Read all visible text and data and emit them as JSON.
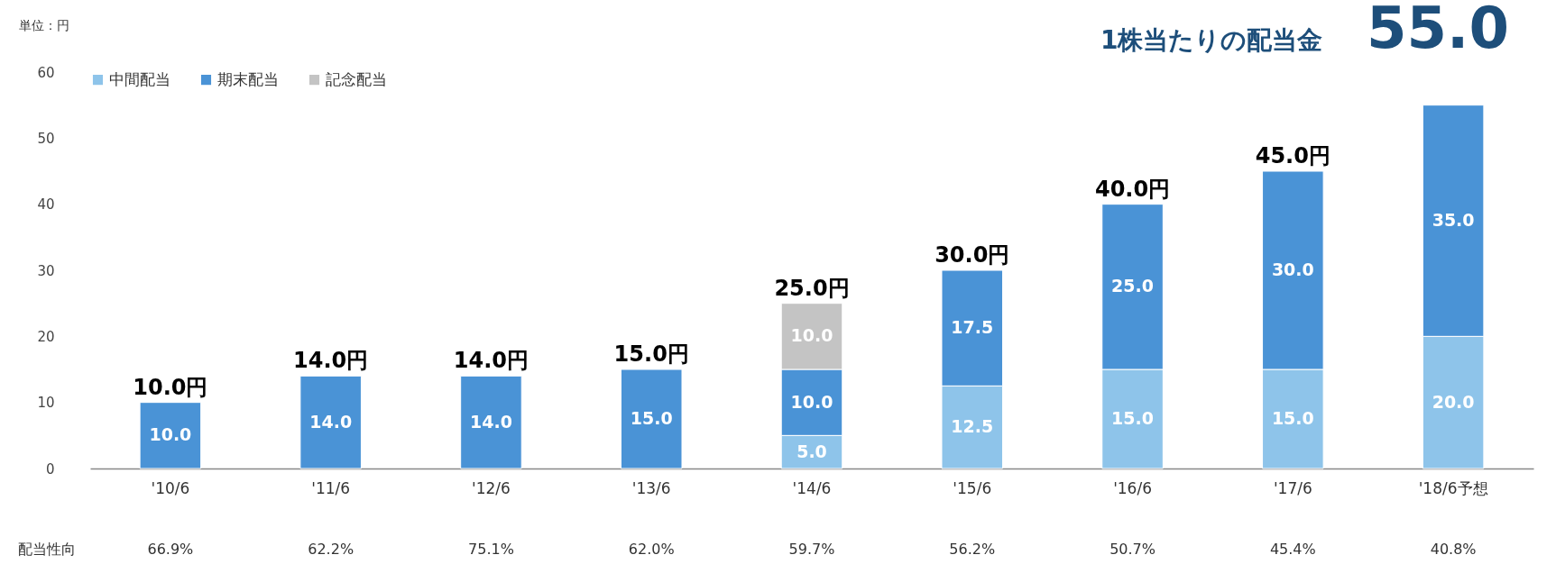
{
  "chart_data": {
    "type": "bar",
    "stacked": true,
    "ylabel": "単位：円",
    "categories": [
      "'10/6",
      "'11/6",
      "'12/6",
      "'13/6",
      "'14/6",
      "'15/6",
      "'16/6",
      "'17/6",
      "'18/6予想"
    ],
    "series": [
      {
        "name": "中間配当",
        "color": "#8ec4ea",
        "values": [
          null,
          null,
          null,
          null,
          5,
          12.5,
          15,
          15,
          20
        ],
        "value_labels": [
          null,
          null,
          null,
          null,
          "5.0",
          "12.5",
          "15.0",
          "15.0",
          "20.0"
        ]
      },
      {
        "name": "期末配当",
        "color": "#4a93d6",
        "values": [
          10,
          14,
          14,
          15,
          10,
          17.5,
          25,
          30,
          35
        ],
        "value_labels": [
          "10.0",
          "14.0",
          "14.0",
          "15.0",
          "10.0",
          "17.5",
          "25.0",
          "30.0",
          "35.0"
        ]
      },
      {
        "name": "記念配当",
        "color": "#c4c4c4",
        "values": [
          null,
          null,
          null,
          null,
          10,
          null,
          null,
          null,
          null
        ],
        "value_labels": [
          null,
          null,
          null,
          null,
          "10.0",
          null,
          null,
          null,
          null
        ]
      }
    ],
    "totals": [
      "10.0円",
      "14.0円",
      "14.0円",
      "15.0円",
      "25.0円",
      "30.0円",
      "40.0円",
      "45.0円",
      null
    ],
    "ylim": [
      0,
      60
    ],
    "yticks": [
      0,
      10,
      20,
      30,
      40,
      50,
      60
    ],
    "grid": false,
    "legend": "top left",
    "annotations": [
      "1株当たりの配当金",
      "55.0",
      "配当性向",
      "66.9%",
      "62.2%",
      "75.1%",
      "62.0%",
      "59.7%",
      "56.2%",
      "50.7%",
      "45.4%",
      "40.8%"
    ]
  }
}
